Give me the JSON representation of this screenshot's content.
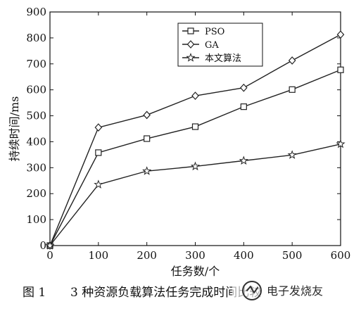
{
  "chart_data": {
    "type": "line",
    "x": [
      0,
      100,
      200,
      300,
      400,
      500,
      600
    ],
    "series": [
      {
        "name": "PSO",
        "marker": "square",
        "values": [
          0,
          358,
          412,
          458,
          535,
          601,
          677
        ]
      },
      {
        "name": "GA",
        "marker": "diamond",
        "values": [
          0,
          455,
          503,
          577,
          608,
          713,
          813
        ]
      },
      {
        "name": "本文算法",
        "marker": "star",
        "values": [
          0,
          235,
          287,
          305,
          327,
          349,
          391
        ]
      }
    ],
    "xlabel": "任务数/个",
    "ylabel": "持续时间/ms",
    "xlim": [
      0,
      600
    ],
    "ylim": [
      0,
      900
    ],
    "xticks": [
      0,
      100,
      200,
      300,
      400,
      500,
      600
    ],
    "yticks": [
      0,
      100,
      200,
      300,
      400,
      500,
      600,
      700,
      800,
      900
    ],
    "grid": false,
    "legend_position": "top-center",
    "line_color": "#222222"
  },
  "caption": {
    "figure_number": "图 1",
    "text": "3 种资源负载算法任务完成时间比较"
  },
  "watermark": {
    "text": "电子发烧友"
  }
}
